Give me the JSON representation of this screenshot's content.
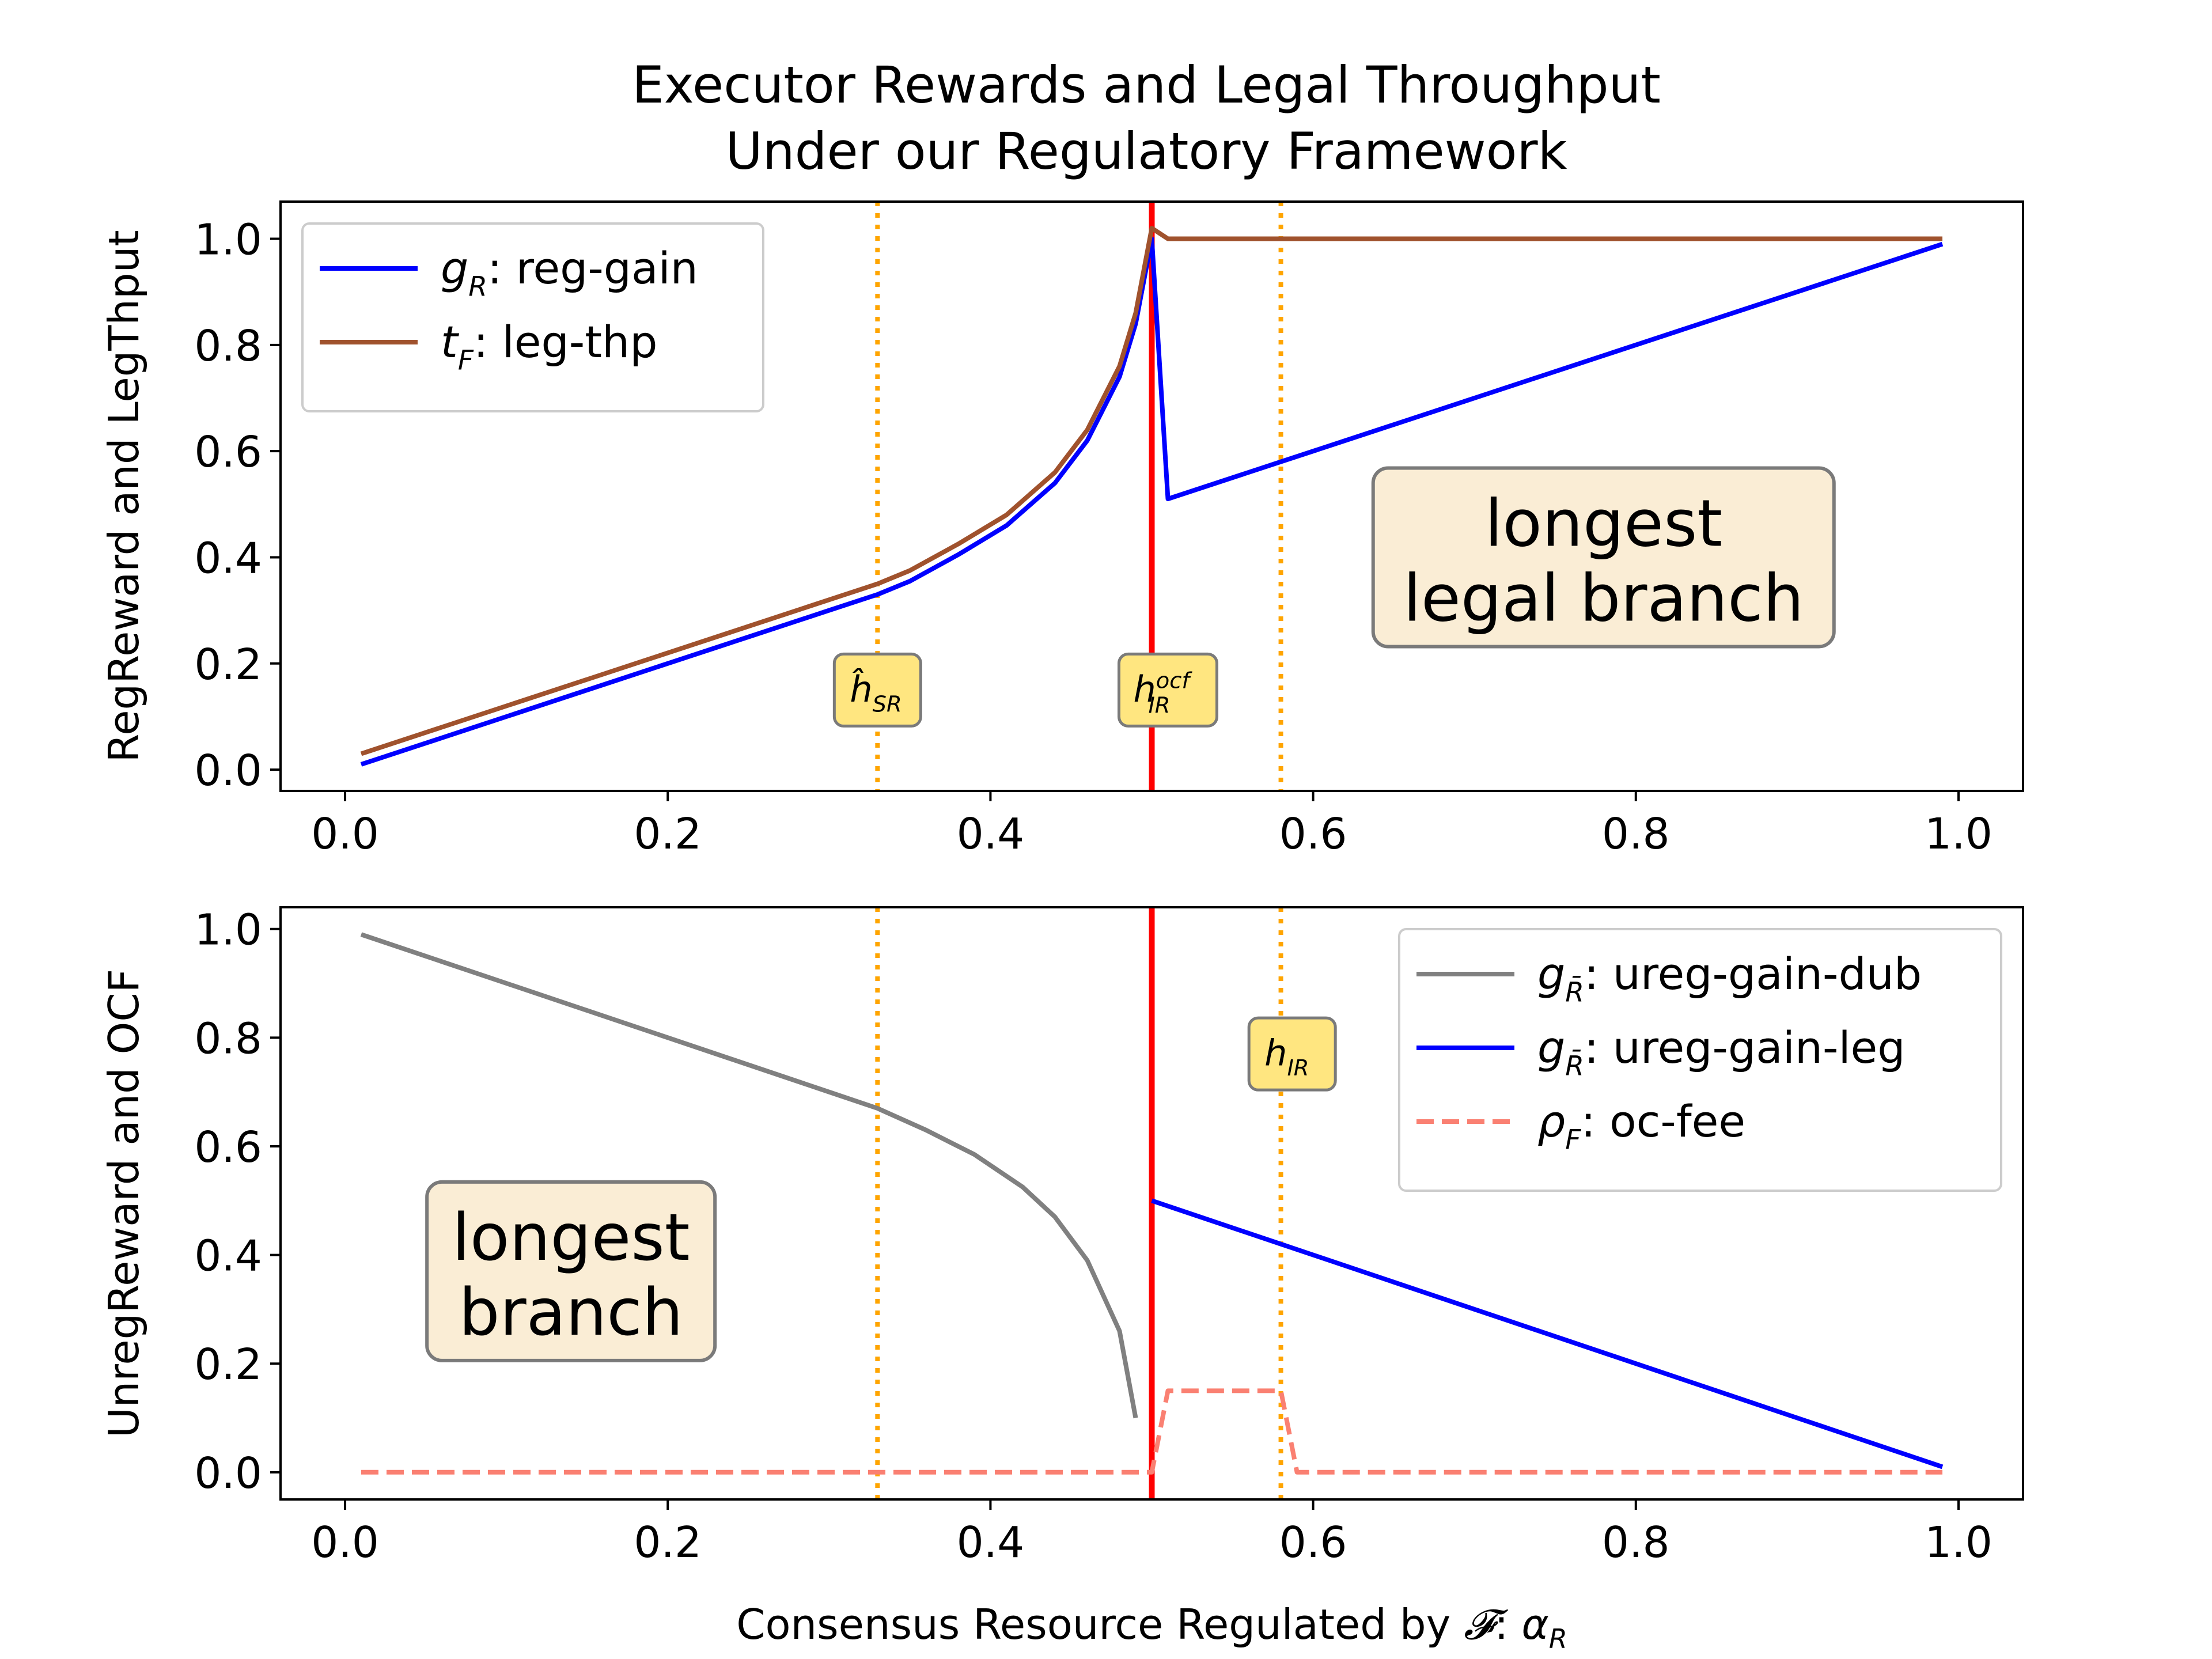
{
  "title_line1": "Executor Rewards and Legal Throughput",
  "title_line2": "Under our Regulatory Framework",
  "colors": {
    "reg_gain": "#0000ff",
    "leg_thp": "#a0522d",
    "ureg_dub": "#808080",
    "ureg_leg": "#0000ff",
    "oc_fee": "#fa8072",
    "threshold_red": "#ff0000",
    "dotted_orange": "#ffa500",
    "marker_box": "#ffe680",
    "region_box": "#f5deb3"
  },
  "chart_data": [
    {
      "type": "line",
      "ylabel": "RegReward and LegThput",
      "xlabel": "",
      "xlim": [
        -0.04,
        1.04
      ],
      "ylim": [
        -0.04,
        1.07
      ],
      "xticks": [
        "0.0",
        "0.2",
        "0.4",
        "0.6",
        "0.8",
        "1.0"
      ],
      "yticks": [
        "0.0",
        "0.2",
        "0.4",
        "0.6",
        "0.8",
        "1.0"
      ],
      "legend_position": "upper-left",
      "series": [
        {
          "name": "g_R: reg-gain",
          "legend_symbol": "g",
          "legend_sub": "R",
          "legend_rest": ": reg-gain",
          "color_key": "reg_gain",
          "dash": "solid",
          "points": [
            [
              0.01,
              0.01
            ],
            [
              0.05,
              0.05
            ],
            [
              0.1,
              0.1
            ],
            [
              0.15,
              0.15
            ],
            [
              0.2,
              0.2
            ],
            [
              0.25,
              0.25
            ],
            [
              0.3,
              0.3
            ],
            [
              0.33,
              0.33
            ],
            [
              0.35,
              0.355
            ],
            [
              0.38,
              0.405
            ],
            [
              0.41,
              0.46
            ],
            [
              0.44,
              0.54
            ],
            [
              0.46,
              0.62
            ],
            [
              0.48,
              0.74
            ],
            [
              0.49,
              0.84
            ],
            [
              0.5,
              1.0
            ],
            [
              0.51,
              0.51
            ],
            [
              0.58,
              0.58
            ],
            [
              0.7,
              0.7
            ],
            [
              0.8,
              0.8
            ],
            [
              0.9,
              0.9
            ],
            [
              0.99,
              0.99
            ]
          ]
        },
        {
          "name": "t_F: leg-thp",
          "legend_symbol": "t",
          "legend_sub": "F",
          "legend_rest": ": leg-thp",
          "color_key": "leg_thp",
          "dash": "solid",
          "points": [
            [
              0.01,
              0.03
            ],
            [
              0.05,
              0.07
            ],
            [
              0.1,
              0.12
            ],
            [
              0.15,
              0.17
            ],
            [
              0.2,
              0.22
            ],
            [
              0.25,
              0.27
            ],
            [
              0.3,
              0.32
            ],
            [
              0.33,
              0.35
            ],
            [
              0.35,
              0.375
            ],
            [
              0.38,
              0.425
            ],
            [
              0.41,
              0.48
            ],
            [
              0.44,
              0.56
            ],
            [
              0.46,
              0.64
            ],
            [
              0.48,
              0.76
            ],
            [
              0.49,
              0.86
            ],
            [
              0.5,
              1.02
            ],
            [
              0.51,
              1.0
            ],
            [
              0.6,
              1.0
            ],
            [
              0.8,
              1.0
            ],
            [
              0.99,
              1.0
            ]
          ]
        }
      ],
      "vlines": [
        {
          "x": 0.33,
          "style": "dotted",
          "color_key": "dotted_orange"
        },
        {
          "x": 0.5,
          "style": "solid",
          "color_key": "threshold_red"
        },
        {
          "x": 0.58,
          "style": "dotted",
          "color_key": "dotted_orange"
        }
      ],
      "markers": [
        {
          "label": "ĥ",
          "sub": "SR",
          "sup": "",
          "x": 0.33,
          "y": 0.15
        },
        {
          "label": "h",
          "sub": "IR",
          "sup": "ocf",
          "x": 0.51,
          "y": 0.15
        }
      ],
      "region": {
        "line1": "longest",
        "line2": "legal branch",
        "x": 0.78,
        "y": 0.4
      }
    },
    {
      "type": "line",
      "ylabel": "UnregReward and OCF",
      "xlabel": "Consensus Resource Regulated by F: α_R",
      "xlim": [
        -0.04,
        1.04
      ],
      "ylim": [
        -0.05,
        1.04
      ],
      "xticks": [
        "0.0",
        "0.2",
        "0.4",
        "0.6",
        "0.8",
        "1.0"
      ],
      "yticks": [
        "0.0",
        "0.2",
        "0.4",
        "0.6",
        "0.8",
        "1.0"
      ],
      "legend_position": "upper-right",
      "series": [
        {
          "name": "g_R̄: ureg-gain-dub",
          "legend_symbol": "g",
          "legend_sub": "R̄",
          "legend_rest": ": ureg-gain-dub",
          "color_key": "ureg_dub",
          "dash": "solid",
          "points": [
            [
              0.01,
              0.99
            ],
            [
              0.1,
              0.9
            ],
            [
              0.2,
              0.8
            ],
            [
              0.3,
              0.7
            ],
            [
              0.33,
              0.67
            ],
            [
              0.36,
              0.63
            ],
            [
              0.39,
              0.585
            ],
            [
              0.42,
              0.525
            ],
            [
              0.44,
              0.47
            ],
            [
              0.46,
              0.39
            ],
            [
              0.48,
              0.26
            ],
            [
              0.49,
              0.1
            ]
          ]
        },
        {
          "name": "g_R̄: ureg-gain-leg",
          "legend_symbol": "g",
          "legend_sub": "R̄",
          "legend_rest": ": ureg-gain-leg",
          "color_key": "ureg_leg",
          "dash": "solid",
          "points": [
            [
              0.5,
              0.5
            ],
            [
              0.58,
              0.42
            ],
            [
              0.7,
              0.3
            ],
            [
              0.8,
              0.2
            ],
            [
              0.9,
              0.1
            ],
            [
              0.99,
              0.01
            ]
          ]
        },
        {
          "name": "ρ_F: oc-fee",
          "legend_symbol": "ρ",
          "legend_sub": "F",
          "legend_rest": ": oc-fee",
          "color_key": "oc_fee",
          "dash": "dashed",
          "points": [
            [
              0.01,
              0.0
            ],
            [
              0.2,
              0.0
            ],
            [
              0.4,
              0.0
            ],
            [
              0.5,
              0.0
            ],
            [
              0.51,
              0.15
            ],
            [
              0.58,
              0.15
            ],
            [
              0.59,
              0.0
            ],
            [
              0.8,
              0.0
            ],
            [
              0.99,
              0.0
            ]
          ]
        }
      ],
      "vlines": [
        {
          "x": 0.33,
          "style": "dotted",
          "color_key": "dotted_orange"
        },
        {
          "x": 0.5,
          "style": "solid",
          "color_key": "threshold_red"
        },
        {
          "x": 0.58,
          "style": "dotted",
          "color_key": "dotted_orange"
        }
      ],
      "markers": [
        {
          "label": "h",
          "sub": "IR",
          "sup": "",
          "x": 0.587,
          "y": 0.77
        }
      ],
      "region": {
        "line1": "longest",
        "line2": "branch",
        "x": 0.14,
        "y": 0.37
      }
    }
  ]
}
